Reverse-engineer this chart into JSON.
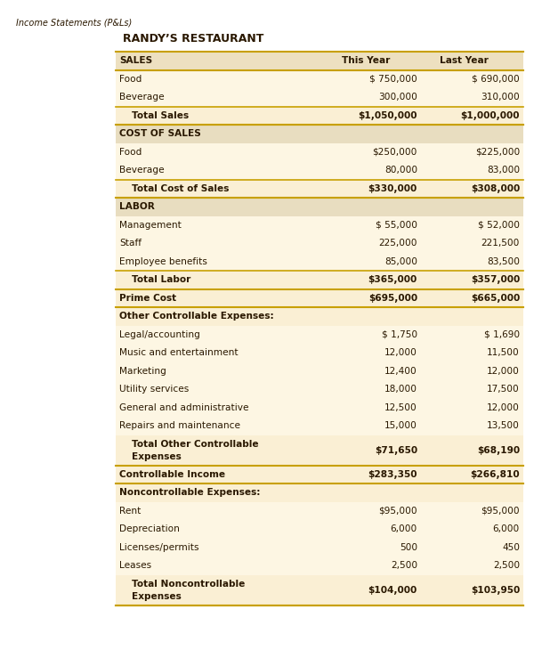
{
  "page_title": "Income Statements (P&Ls)",
  "restaurant_name": "RANDY’S RESTAURANT",
  "bg_color": "#ffffff",
  "table_bg_light": "#fdf6e3",
  "header_bg": "#ede0c0",
  "total_row_bg": "#faefd4",
  "section_header_bg": "#e8ddc0",
  "subsection_header_bg": "#faefd4",
  "gold_line": "#c8a000",
  "text_dark": "#2a1800",
  "rows": [
    {
      "label": "SALES",
      "this_year": "This Year",
      "last_year": "Last Year",
      "type": "col_header"
    },
    {
      "label": "Food",
      "this_year": "$ 750,000",
      "last_year": "$ 690,000",
      "type": "data"
    },
    {
      "label": "Beverage",
      "this_year": "300,000",
      "last_year": "310,000",
      "type": "data"
    },
    {
      "label": "Total Sales",
      "this_year": "$1,050,000",
      "last_year": "$1,000,000",
      "type": "subtotal"
    },
    {
      "label": "COST OF SALES",
      "this_year": "",
      "last_year": "",
      "type": "section_header"
    },
    {
      "label": "Food",
      "this_year": "$250,000",
      "last_year": "$225,000",
      "type": "data"
    },
    {
      "label": "Beverage",
      "this_year": "80,000",
      "last_year": "83,000",
      "type": "data"
    },
    {
      "label": "Total Cost of Sales",
      "this_year": "$330,000",
      "last_year": "$308,000",
      "type": "subtotal"
    },
    {
      "label": "LABOR",
      "this_year": "",
      "last_year": "",
      "type": "section_header"
    },
    {
      "label": "Management",
      "this_year": "$ 55,000",
      "last_year": "$ 52,000",
      "type": "data"
    },
    {
      "label": "Staff",
      "this_year": "225,000",
      "last_year": "221,500",
      "type": "data"
    },
    {
      "label": "Employee benefits",
      "this_year": "85,000",
      "last_year": "83,500",
      "type": "data"
    },
    {
      "label": "Total Labor",
      "this_year": "$365,000",
      "last_year": "$357,000",
      "type": "subtotal"
    },
    {
      "label": "Prime Cost",
      "this_year": "$695,000",
      "last_year": "$665,000",
      "type": "prime_cost"
    },
    {
      "label": "Other Controllable Expenses:",
      "this_year": "",
      "last_year": "",
      "type": "subsection_header"
    },
    {
      "label": "Legal/accounting",
      "this_year": "$ 1,750",
      "last_year": "$ 1,690",
      "type": "data"
    },
    {
      "label": "Music and entertainment",
      "this_year": "12,000",
      "last_year": "11,500",
      "type": "data"
    },
    {
      "label": "Marketing",
      "this_year": "12,400",
      "last_year": "12,000",
      "type": "data"
    },
    {
      "label": "Utility services",
      "this_year": "18,000",
      "last_year": "17,500",
      "type": "data"
    },
    {
      "label": "General and administrative",
      "this_year": "12,500",
      "last_year": "12,000",
      "type": "data"
    },
    {
      "label": "Repairs and maintenance",
      "this_year": "15,000",
      "last_year": "13,500",
      "type": "data"
    },
    {
      "label": "Total Other Controllable\nExpenses",
      "this_year": "$71,650",
      "last_year": "$68,190",
      "type": "subtotal2"
    },
    {
      "label": "Controllable Income",
      "this_year": "$283,350",
      "last_year": "$266,810",
      "type": "controllable"
    },
    {
      "label": "Noncontrollable Expenses:",
      "this_year": "",
      "last_year": "",
      "type": "subsection_header"
    },
    {
      "label": "Rent",
      "this_year": "$95,000",
      "last_year": "$95,000",
      "type": "data"
    },
    {
      "label": "Depreciation",
      "this_year": "6,000",
      "last_year": "6,000",
      "type": "data"
    },
    {
      "label": "Licenses/permits",
      "this_year": "500",
      "last_year": "450",
      "type": "data"
    },
    {
      "label": "Leases",
      "this_year": "2,500",
      "last_year": "2,500",
      "type": "data"
    },
    {
      "label": "Total Noncontrollable\nExpenses",
      "this_year": "$104,000",
      "last_year": "$103,950",
      "type": "subtotal2"
    }
  ]
}
